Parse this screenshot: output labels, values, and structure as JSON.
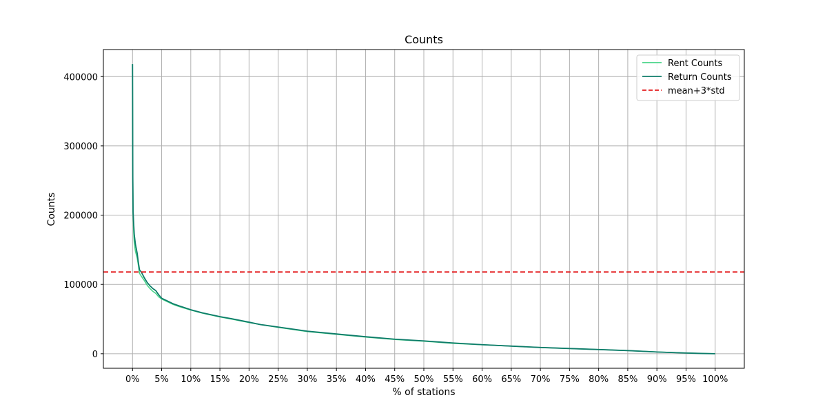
{
  "chart_data": {
    "type": "line",
    "title": "Counts",
    "xlabel": "% of stations",
    "ylabel": "Counts",
    "xlim": [
      -5,
      105
    ],
    "ylim": [
      -21000,
      439000
    ],
    "x_ticks": [
      0,
      5,
      10,
      15,
      20,
      25,
      30,
      35,
      40,
      45,
      50,
      55,
      60,
      65,
      70,
      75,
      80,
      85,
      90,
      95,
      100
    ],
    "x_tick_labels": [
      "0%",
      "5%",
      "10%",
      "15%",
      "20%",
      "25%",
      "30%",
      "35%",
      "40%",
      "45%",
      "50%",
      "55%",
      "60%",
      "65%",
      "70%",
      "75%",
      "80%",
      "85%",
      "90%",
      "95%",
      "100%"
    ],
    "y_ticks": [
      0,
      100000,
      200000,
      300000,
      400000
    ],
    "y_tick_labels": [
      "0",
      "100000",
      "200000",
      "300000",
      "400000"
    ],
    "grid": true,
    "legend_position": "top-right",
    "series": [
      {
        "name": "Rent Counts",
        "color": "#4ad48a",
        "style": "solid",
        "x": [
          0,
          0.05,
          0.1,
          0.2,
          0.3,
          0.5,
          0.8,
          1.0,
          1.2,
          1.5,
          2.0,
          2.5,
          3.0,
          3.5,
          4.0,
          4.5,
          5,
          6,
          7,
          8,
          10,
          12,
          15,
          17,
          20,
          22,
          25,
          30,
          35,
          40,
          45,
          50,
          55,
          60,
          65,
          70,
          75,
          80,
          85,
          90,
          95,
          98,
          100
        ],
        "y": [
          418000,
          250000,
          200000,
          175000,
          160000,
          148000,
          138000,
          128000,
          116000,
          112000,
          106000,
          99000,
          94000,
          90000,
          87000,
          82000,
          79000,
          75000,
          71000,
          68000,
          63000,
          58500,
          53000,
          50000,
          45000,
          42000,
          38000,
          32000,
          28000,
          24000,
          20500,
          18000,
          15000,
          13000,
          11000,
          9000,
          7500,
          6000,
          4500,
          2500,
          1000,
          300,
          0
        ]
      },
      {
        "name": "Return Counts",
        "color": "#0e7c6a",
        "style": "solid",
        "x": [
          0,
          0.05,
          0.1,
          0.2,
          0.3,
          0.5,
          0.8,
          1.0,
          1.2,
          1.5,
          2.0,
          2.5,
          3.0,
          3.5,
          4.0,
          4.5,
          5,
          6,
          7,
          8,
          10,
          12,
          15,
          17,
          20,
          22,
          25,
          30,
          35,
          40,
          45,
          50,
          55,
          60,
          65,
          70,
          75,
          80,
          85,
          90,
          95,
          98,
          100
        ],
        "y": [
          418000,
          255000,
          205000,
          188000,
          172000,
          158000,
          145000,
          132000,
          121000,
          118000,
          110000,
          103000,
          98000,
          94000,
          91000,
          85000,
          80000,
          76000,
          72000,
          69000,
          63500,
          59000,
          53500,
          50500,
          45500,
          42000,
          38500,
          32500,
          28500,
          24500,
          21000,
          18500,
          15500,
          13000,
          11000,
          9000,
          7500,
          6000,
          4500,
          2500,
          1000,
          300,
          0
        ]
      },
      {
        "name": "mean+3*std",
        "color": "#e41a1c",
        "style": "dashed",
        "y_const": 118000
      }
    ]
  }
}
